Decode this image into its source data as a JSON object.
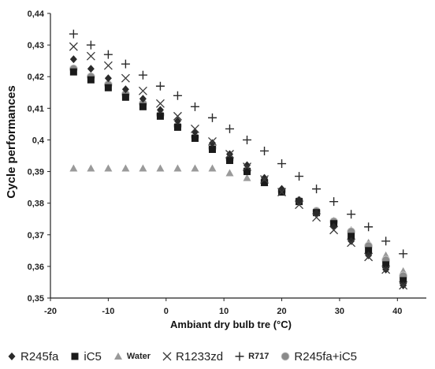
{
  "chart_data": {
    "type": "scatter",
    "title": "",
    "xlabel": "Ambiant dry bulb tre (°C)",
    "ylabel": "Cycle performances",
    "xlim": [
      -20,
      45
    ],
    "ylim": [
      0.35,
      0.44
    ],
    "x_ticks": [
      "-20",
      "-10",
      "0",
      "10",
      "20",
      "30",
      "40"
    ],
    "y_ticks": [
      "0,35",
      "0,36",
      "0,37",
      "0,38",
      "0,39",
      "0,4",
      "0,41",
      "0,42",
      "0,43",
      "0,44"
    ],
    "grid": false,
    "legend_position": "bottom",
    "series": [
      {
        "name": "R245fa",
        "marker": "diamond",
        "color": "#2a2a2a",
        "x": [
          -16,
          -13,
          -10,
          -7,
          -4,
          -1,
          2,
          5,
          8,
          11,
          14,
          17,
          20,
          23,
          26,
          29,
          32,
          35,
          38,
          41
        ],
        "y": [
          0.4255,
          0.4225,
          0.4195,
          0.416,
          0.413,
          0.4095,
          0.406,
          0.4025,
          0.399,
          0.3955,
          0.392,
          0.388,
          0.3845,
          0.381,
          0.377,
          0.3725,
          0.368,
          0.3635,
          0.359,
          0.354
        ]
      },
      {
        "name": "iC5",
        "marker": "square",
        "color": "#1a1a1a",
        "x": [
          -16,
          -13,
          -10,
          -7,
          -4,
          -1,
          2,
          5,
          8,
          11,
          14,
          17,
          20,
          23,
          26,
          29,
          32,
          35,
          38,
          41
        ],
        "y": [
          0.4215,
          0.419,
          0.4165,
          0.4135,
          0.4105,
          0.4075,
          0.404,
          0.4005,
          0.397,
          0.3935,
          0.39,
          0.3865,
          0.3835,
          0.3805,
          0.377,
          0.3735,
          0.3695,
          0.365,
          0.3605,
          0.3555
        ]
      },
      {
        "name": "Water",
        "marker": "triangle",
        "color": "#9a9a9a",
        "x": [
          -16,
          -13,
          -10,
          -7,
          -4,
          -1,
          2,
          5,
          8,
          11,
          14,
          17,
          20,
          23,
          26,
          29,
          32,
          35,
          38,
          41
        ],
        "y": [
          0.391,
          0.391,
          0.391,
          0.391,
          0.391,
          0.391,
          0.391,
          0.391,
          0.391,
          0.3895,
          0.388,
          0.3865,
          0.3835,
          0.3805,
          0.3775,
          0.3745,
          0.3715,
          0.3675,
          0.3635,
          0.3585
        ]
      },
      {
        "name": "R1233zd",
        "marker": "cross",
        "color": "#3a3a3a",
        "x": [
          -16,
          -13,
          -10,
          -7,
          -4,
          -1,
          2,
          5,
          8,
          11,
          14,
          17,
          20,
          23,
          26,
          29,
          32,
          35,
          38,
          41
        ],
        "y": [
          0.4295,
          0.4265,
          0.4235,
          0.4195,
          0.4155,
          0.4115,
          0.4075,
          0.4035,
          0.3995,
          0.3955,
          0.3915,
          0.3875,
          0.3835,
          0.3795,
          0.3755,
          0.3715,
          0.3675,
          0.363,
          0.359,
          0.354
        ]
      },
      {
        "name": "R717",
        "marker": "plus",
        "color": "#2a2a2a",
        "x": [
          -16,
          -13,
          -10,
          -7,
          -4,
          -1,
          2,
          5,
          8,
          11,
          14,
          17,
          20,
          23,
          26,
          29,
          32,
          35,
          38,
          41
        ],
        "y": [
          0.4335,
          0.43,
          0.427,
          0.424,
          0.4205,
          0.417,
          0.414,
          0.4105,
          0.407,
          0.4035,
          0.4,
          0.3965,
          0.3925,
          0.3885,
          0.3845,
          0.3805,
          0.3765,
          0.3725,
          0.368,
          0.364
        ]
      },
      {
        "name": "R245fa+iC5",
        "marker": "circle",
        "color": "#8a8a8a",
        "x": [
          -16,
          -13,
          -10,
          -7,
          -4,
          -1,
          2,
          5,
          8,
          11,
          14,
          17,
          20,
          23,
          26,
          29,
          32,
          35,
          38,
          41
        ],
        "y": [
          0.4225,
          0.42,
          0.4175,
          0.4145,
          0.4115,
          0.408,
          0.4045,
          0.401,
          0.3975,
          0.394,
          0.3905,
          0.387,
          0.3838,
          0.3808,
          0.3775,
          0.3742,
          0.371,
          0.3665,
          0.362,
          0.357
        ]
      }
    ]
  }
}
